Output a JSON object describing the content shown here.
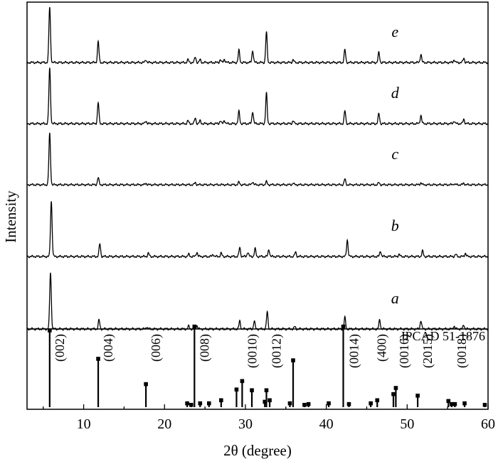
{
  "chart_data": {
    "type": "line",
    "title": "",
    "xlabel": "2θ (degree)",
    "ylabel": "Intensity",
    "xlim": [
      3,
      60
    ],
    "xticks": [
      10,
      20,
      30,
      40,
      50,
      60
    ],
    "xtick_labels": [
      "10",
      "20",
      "30",
      "40",
      "50",
      "60"
    ],
    "grid": false,
    "series": [
      {
        "name": "e",
        "peaks": [
          [
            5.8,
            1.0
          ],
          [
            11.8,
            0.38
          ],
          [
            17.7,
            0.05
          ],
          [
            22.9,
            0.05
          ],
          [
            23.8,
            0.1
          ],
          [
            24.4,
            0.05
          ],
          [
            26.9,
            0.05
          ],
          [
            27.4,
            0.06
          ],
          [
            29.2,
            0.22
          ],
          [
            30.9,
            0.22
          ],
          [
            32.6,
            0.55
          ],
          [
            35.9,
            0.05
          ],
          [
            42.3,
            0.23
          ],
          [
            46.5,
            0.18
          ],
          [
            51.7,
            0.15
          ],
          [
            55.8,
            0.05
          ],
          [
            57.0,
            0.08
          ]
        ]
      },
      {
        "name": "d",
        "peaks": [
          [
            5.8,
            1.0
          ],
          [
            11.8,
            0.38
          ],
          [
            17.7,
            0.05
          ],
          [
            22.9,
            0.05
          ],
          [
            23.8,
            0.1
          ],
          [
            24.4,
            0.05
          ],
          [
            26.9,
            0.05
          ],
          [
            27.4,
            0.06
          ],
          [
            29.2,
            0.22
          ],
          [
            30.9,
            0.22
          ],
          [
            32.6,
            0.55
          ],
          [
            35.9,
            0.05
          ],
          [
            42.3,
            0.23
          ],
          [
            46.5,
            0.18
          ],
          [
            51.7,
            0.15
          ],
          [
            55.8,
            0.05
          ],
          [
            57.0,
            0.08
          ]
        ]
      },
      {
        "name": "c",
        "peaks": [
          [
            5.8,
            1.0
          ],
          [
            11.8,
            0.14
          ],
          [
            17.7,
            0.03
          ],
          [
            23.8,
            0.04
          ],
          [
            29.2,
            0.05
          ],
          [
            30.9,
            0.06
          ],
          [
            32.6,
            0.06
          ],
          [
            35.9,
            0.03
          ],
          [
            42.3,
            0.11
          ],
          [
            46.5,
            0.04
          ],
          [
            51.7,
            0.04
          ],
          [
            55.8,
            0.02
          ],
          [
            57.0,
            0.03
          ]
        ]
      },
      {
        "name": "b",
        "peaks": [
          [
            6.0,
            1.0
          ],
          [
            12.0,
            0.23
          ],
          [
            18.0,
            0.06
          ],
          [
            23.0,
            0.04
          ],
          [
            24.0,
            0.08
          ],
          [
            26.0,
            0.04
          ],
          [
            27.0,
            0.06
          ],
          [
            29.3,
            0.16
          ],
          [
            30.3,
            0.08
          ],
          [
            31.2,
            0.14
          ],
          [
            32.9,
            0.13
          ],
          [
            36.2,
            0.08
          ],
          [
            42.6,
            0.3
          ],
          [
            46.7,
            0.1
          ],
          [
            49.0,
            0.04
          ],
          [
            51.9,
            0.1
          ],
          [
            56.0,
            0.04
          ],
          [
            57.2,
            0.06
          ]
        ]
      },
      {
        "name": "a",
        "peaks": [
          [
            5.9,
            1.0
          ],
          [
            11.9,
            0.16
          ],
          [
            17.8,
            0.04
          ],
          [
            23.0,
            0.05
          ],
          [
            24.0,
            0.06
          ],
          [
            29.3,
            0.14
          ],
          [
            31.1,
            0.14
          ],
          [
            32.7,
            0.3
          ],
          [
            36.1,
            0.04
          ],
          [
            42.3,
            0.2
          ],
          [
            46.6,
            0.16
          ],
          [
            51.7,
            0.15
          ],
          [
            55.8,
            0.05
          ],
          [
            57.0,
            0.07
          ]
        ]
      }
    ],
    "reference": {
      "name": "JPCAD 51-1876",
      "sticks": [
        [
          5.8,
          1.0
        ],
        [
          11.8,
          0.63
        ],
        [
          17.7,
          0.3
        ],
        [
          22.8,
          0.05
        ],
        [
          23.3,
          0.03
        ],
        [
          23.7,
          1.05
        ],
        [
          24.4,
          0.05
        ],
        [
          25.5,
          0.05
        ],
        [
          27.0,
          0.09
        ],
        [
          28.9,
          0.23
        ],
        [
          29.6,
          0.34
        ],
        [
          30.8,
          0.22
        ],
        [
          32.4,
          0.07
        ],
        [
          32.6,
          0.22
        ],
        [
          33.0,
          0.09
        ],
        [
          35.5,
          0.05
        ],
        [
          35.9,
          0.61
        ],
        [
          37.3,
          0.03
        ],
        [
          37.8,
          0.04
        ],
        [
          40.3,
          0.05
        ],
        [
          42.1,
          1.05
        ],
        [
          42.8,
          0.04
        ],
        [
          45.5,
          0.05
        ],
        [
          46.3,
          0.09
        ],
        [
          48.3,
          0.17
        ],
        [
          48.6,
          0.25
        ],
        [
          51.3,
          0.15
        ],
        [
          55.1,
          0.08
        ],
        [
          55.5,
          0.04
        ],
        [
          55.9,
          0.04
        ],
        [
          57.1,
          0.05
        ],
        [
          59.6,
          0.03
        ]
      ],
      "hkl": [
        "(002)",
        "(004)",
        "(006)",
        "(008)",
        "(0010)",
        "(0012)",
        "(0014)",
        "(400)",
        "(0016)",
        "(2015)",
        "(0018)"
      ]
    }
  }
}
